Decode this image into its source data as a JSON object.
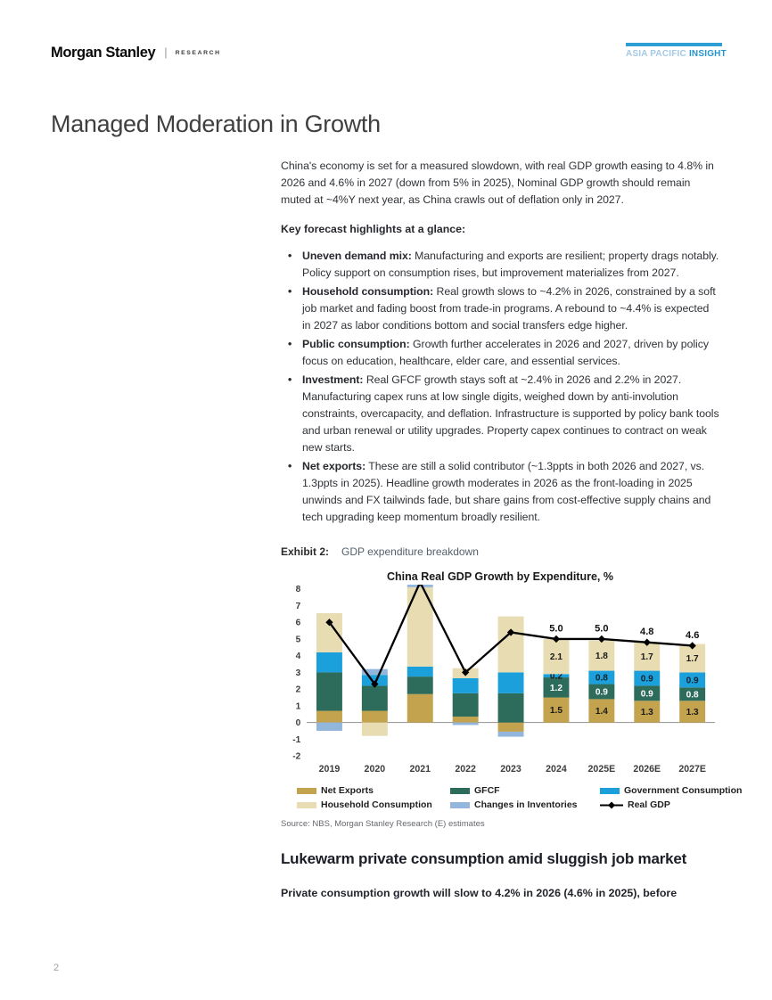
{
  "header": {
    "logo": "Morgan Stanley",
    "divider": "|",
    "unit": "RESEARCH",
    "badge_region": "ASIA PACIFIC",
    "badge_product": "INSIGHT",
    "badge_color": "#2E9FD4"
  },
  "page_title": "Managed Moderation in Growth",
  "intro": "China's economy is set for a measured slowdown, with real GDP growth easing to 4.8% in 2026 and 4.6% in 2027 (down from 5% in 2025), Nominal GDP growth should remain muted at ~4%Y next year, as China crawls out of deflation only in 2027.",
  "highlights_heading": "Key forecast highlights at a glance:",
  "bullets": [
    {
      "lead": "Uneven demand mix:",
      "text": " Manufacturing and exports are resilient; property drags notably. Policy support on consumption rises, but improvement materializes from 2027."
    },
    {
      "lead": "Household consumption:",
      "text": " Real growth slows to ~4.2% in 2026, constrained by a soft job market and fading boost from trade-in programs. A rebound to ~4.4% is expected in 2027 as labor conditions bottom and social transfers edge higher."
    },
    {
      "lead": "Public consumption:",
      "text": " Growth further accelerates in 2026 and 2027, driven by policy focus on education, healthcare, elder care, and essential services."
    },
    {
      "lead": "Investment:",
      "text": " Real GFCF growth stays soft at ~2.4% in 2026 and 2.2% in 2027. Manufacturing capex runs at low single digits, weighed down by anti-involution constraints, overcapacity, and deflation. Infrastructure is supported by policy bank tools and urban renewal or utility upgrades. Property capex continues to contract on weak new starts."
    },
    {
      "lead": "Net exports:",
      "text": " These are still a solid contributor (~1.3ppts in both 2026 and 2027, vs. 1.3ppts in 2025). Headline growth moderates in 2026 as the front-loading in 2025 unwinds and FX tailwinds fade, but share gains from cost-effective supply chains and tech upgrading keep momentum broadly resilient."
    }
  ],
  "exhibit": {
    "label": "Exhibit 2:",
    "caption": "GDP expenditure breakdown"
  },
  "chart_data": {
    "type": "bar",
    "subtype": "stacked-bar-with-line",
    "title": "China Real GDP Growth by Expenditure, %",
    "categories": [
      "2019",
      "2020",
      "2021",
      "2022",
      "2023",
      "2024",
      "2025E",
      "2026E",
      "2027E"
    ],
    "ylim": [
      -2,
      8
    ],
    "yticks": [
      8,
      7,
      6,
      5,
      4,
      3,
      2,
      1,
      0,
      -1,
      -2
    ],
    "grid": "zero-line-only",
    "legend_position": "bottom",
    "labels_from_index": 5,
    "series": [
      {
        "name": "Net Exports",
        "color": "#C4A34E",
        "label_color": "#1a1a1a",
        "values": [
          0.7,
          0.7,
          1.7,
          0.35,
          -0.55,
          1.5,
          1.4,
          1.3,
          1.3
        ]
      },
      {
        "name": "GFCF",
        "color": "#2D6B5A",
        "label_color": "#ffffff",
        "values": [
          2.3,
          1.5,
          1.05,
          1.4,
          1.75,
          1.2,
          0.9,
          0.9,
          0.8
        ]
      },
      {
        "name": "Government Consumption",
        "color": "#1CA0DC",
        "label_color": "#12232b",
        "values": [
          1.2,
          0.65,
          0.6,
          0.9,
          1.25,
          0.2,
          0.8,
          0.9,
          0.9
        ]
      },
      {
        "name": "Household Consumption",
        "color": "#E8DCB2",
        "label_color": "#1a1a1a",
        "values": [
          2.35,
          -0.8,
          4.75,
          0.6,
          3.35,
          2.1,
          1.8,
          1.7,
          1.7
        ]
      },
      {
        "name": "Changes in Inventories",
        "color": "#92B6DC",
        "label_color": "#1a1a1a",
        "show_label": false,
        "values": [
          -0.5,
          0.35,
          0.15,
          -0.15,
          -0.3,
          0,
          0,
          0,
          0
        ]
      }
    ],
    "line_series": {
      "name": "Real GDP",
      "color": "#000000",
      "values": [
        6.0,
        2.3,
        8.4,
        3.0,
        5.4,
        5.0,
        5.0,
        4.8,
        4.6
      ],
      "point_labels_from": 5
    }
  },
  "legend": {
    "items": [
      {
        "label": "Net Exports",
        "color": "#C4A34E",
        "type": "box"
      },
      {
        "label": "GFCF",
        "color": "#2D6B5A",
        "type": "box"
      },
      {
        "label": "Government Consumption",
        "color": "#1CA0DC",
        "type": "box"
      },
      {
        "label": "Household Consumption",
        "color": "#E8DCB2",
        "type": "box"
      },
      {
        "label": "Changes in Inventories",
        "color": "#92B6DC",
        "type": "box"
      },
      {
        "label": "Real GDP",
        "color": "#000000",
        "type": "line"
      }
    ]
  },
  "source": "Source: NBS, Morgan Stanley Research (E) estimates",
  "section_heading": "Lukewarm private consumption amid sluggish job market",
  "lead_paragraph": "Private consumption growth will slow to 4.2% in 2026 (4.6% in 2025), before",
  "page_number": "2"
}
